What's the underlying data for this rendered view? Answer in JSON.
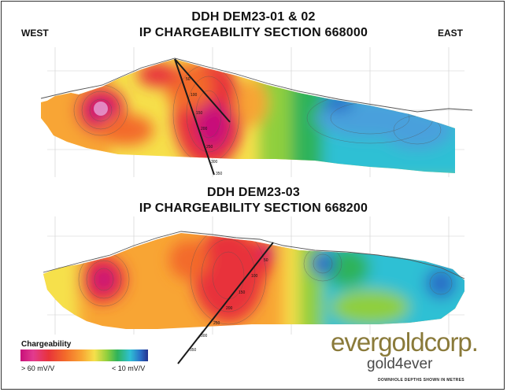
{
  "section1": {
    "title_line1": "DDH DEM23-01 & 02",
    "title_line2": "IP CHARGEABILITY SECTION 668000",
    "west": "WEST",
    "east": "EAST",
    "depth_labels": [
      "50",
      "100",
      "150",
      "200",
      "250",
      "300",
      "350"
    ]
  },
  "section2": {
    "title_line1": "DDH DEM23-03",
    "title_line2": "IP CHARGEABILITY SECTION 668200",
    "depth_labels": [
      "50",
      "100",
      "150",
      "200",
      "250",
      "300",
      "350"
    ]
  },
  "legend": {
    "title": "Chargeability",
    "high": "> 60 mV/V",
    "low": "< 10 mV/V",
    "colors": [
      "#c8107a",
      "#e8333a",
      "#f36a2a",
      "#f8a534",
      "#f6e04b",
      "#8fcf3d",
      "#2fb35a",
      "#2fc0d4",
      "#2a6fc7",
      "#23338f"
    ]
  },
  "logo": {
    "main": "evergoldcorp.",
    "sub": "gold4ever"
  },
  "footnote": "DOWNHOLE DEPTHS SHOWN IN METRES"
}
